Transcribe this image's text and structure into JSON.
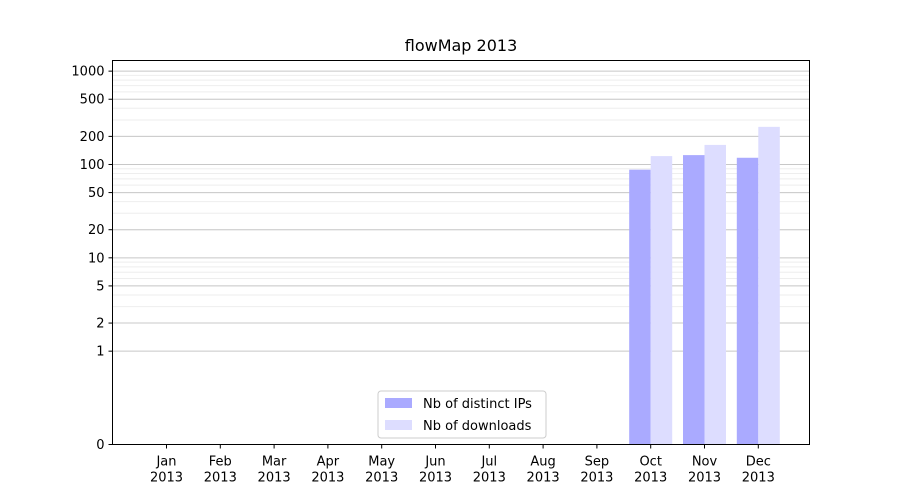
{
  "chart_data": {
    "type": "bar",
    "title": "flowMap 2013",
    "xlabel": "",
    "ylabel": "",
    "categories": [
      {
        "month": "Jan",
        "year": "2013"
      },
      {
        "month": "Feb",
        "year": "2013"
      },
      {
        "month": "Mar",
        "year": "2013"
      },
      {
        "month": "Apr",
        "year": "2013"
      },
      {
        "month": "May",
        "year": "2013"
      },
      {
        "month": "Jun",
        "year": "2013"
      },
      {
        "month": "Jul",
        "year": "2013"
      },
      {
        "month": "Aug",
        "year": "2013"
      },
      {
        "month": "Sep",
        "year": "2013"
      },
      {
        "month": "Oct",
        "year": "2013"
      },
      {
        "month": "Nov",
        "year": "2013"
      },
      {
        "month": "Dec",
        "year": "2013"
      }
    ],
    "series": [
      {
        "name": "Nb of distinct IPs",
        "color": "#aaaaff",
        "values": [
          0,
          0,
          0,
          0,
          0,
          0,
          0,
          0,
          0,
          88,
          126,
          118
        ]
      },
      {
        "name": "Nb of downloads",
        "color": "#ddddff",
        "values": [
          0,
          0,
          0,
          0,
          0,
          0,
          0,
          0,
          0,
          123,
          162,
          253
        ]
      }
    ],
    "yscale": "symlog",
    "ylim": [
      0,
      1300
    ],
    "yticks": [
      0,
      1,
      2,
      5,
      10,
      20,
      50,
      100,
      200,
      500,
      1000
    ],
    "yticklabels": [
      "0",
      "1",
      "2",
      "5",
      "10",
      "20",
      "50",
      "100",
      "200",
      "500",
      "1000"
    ],
    "grid": true,
    "legend": "bottom-center"
  }
}
